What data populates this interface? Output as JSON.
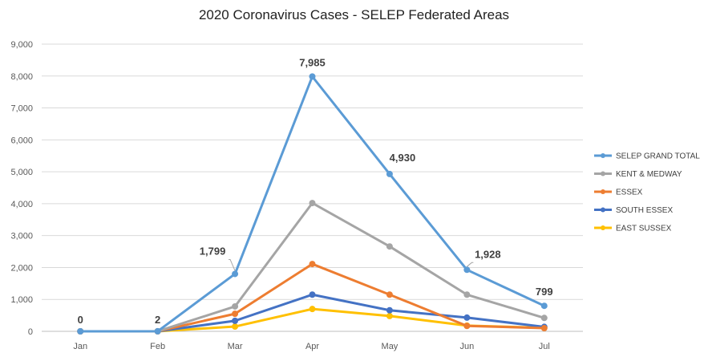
{
  "chart_data": {
    "type": "line",
    "title": "2020 Coronavirus Cases - SELEP Federated Areas",
    "xlabel": "",
    "ylabel": "",
    "categories": [
      "Jan",
      "Feb",
      "Mar",
      "Apr",
      "May",
      "Jun",
      "Jul"
    ],
    "ylim": [
      0,
      9000
    ],
    "y_ticks": [
      0,
      1000,
      2000,
      3000,
      4000,
      5000,
      6000,
      7000,
      8000,
      9000
    ],
    "y_tick_labels": [
      "0",
      "1,000",
      "2,000",
      "3,000",
      "4,000",
      "5,000",
      "6,000",
      "7,000",
      "8,000",
      "9,000"
    ],
    "grid": true,
    "legend_position": "right",
    "series": [
      {
        "name": "SELEP GRAND TOTAL",
        "color": "#5B9BD5",
        "values": [
          0,
          2,
          1799,
          7985,
          4930,
          1928,
          799
        ]
      },
      {
        "name": "KENT  & MEDWAY",
        "color": "#A5A5A5",
        "values": [
          0,
          1,
          780,
          4020,
          2660,
          1150,
          420
        ]
      },
      {
        "name": "ESSEX",
        "color": "#ED7D31",
        "values": [
          0,
          1,
          550,
          2110,
          1150,
          170,
          100
        ]
      },
      {
        "name": "SOUTH ESSEX",
        "color": "#4472C4",
        "values": [
          0,
          0,
          330,
          1150,
          660,
          430,
          140
        ]
      },
      {
        "name": "EAST SUSSEX",
        "color": "#FFC000",
        "values": [
          0,
          0,
          150,
          700,
          480,
          180,
          110
        ]
      }
    ],
    "data_labels": [
      {
        "series": 0,
        "index": 0,
        "text": "0"
      },
      {
        "series": 0,
        "index": 1,
        "text": "2"
      },
      {
        "series": 0,
        "index": 2,
        "text": "1,799"
      },
      {
        "series": 0,
        "index": 3,
        "text": "7,985"
      },
      {
        "series": 0,
        "index": 4,
        "text": "4,930"
      },
      {
        "series": 0,
        "index": 5,
        "text": "1,928"
      },
      {
        "series": 0,
        "index": 6,
        "text": "799"
      }
    ]
  }
}
